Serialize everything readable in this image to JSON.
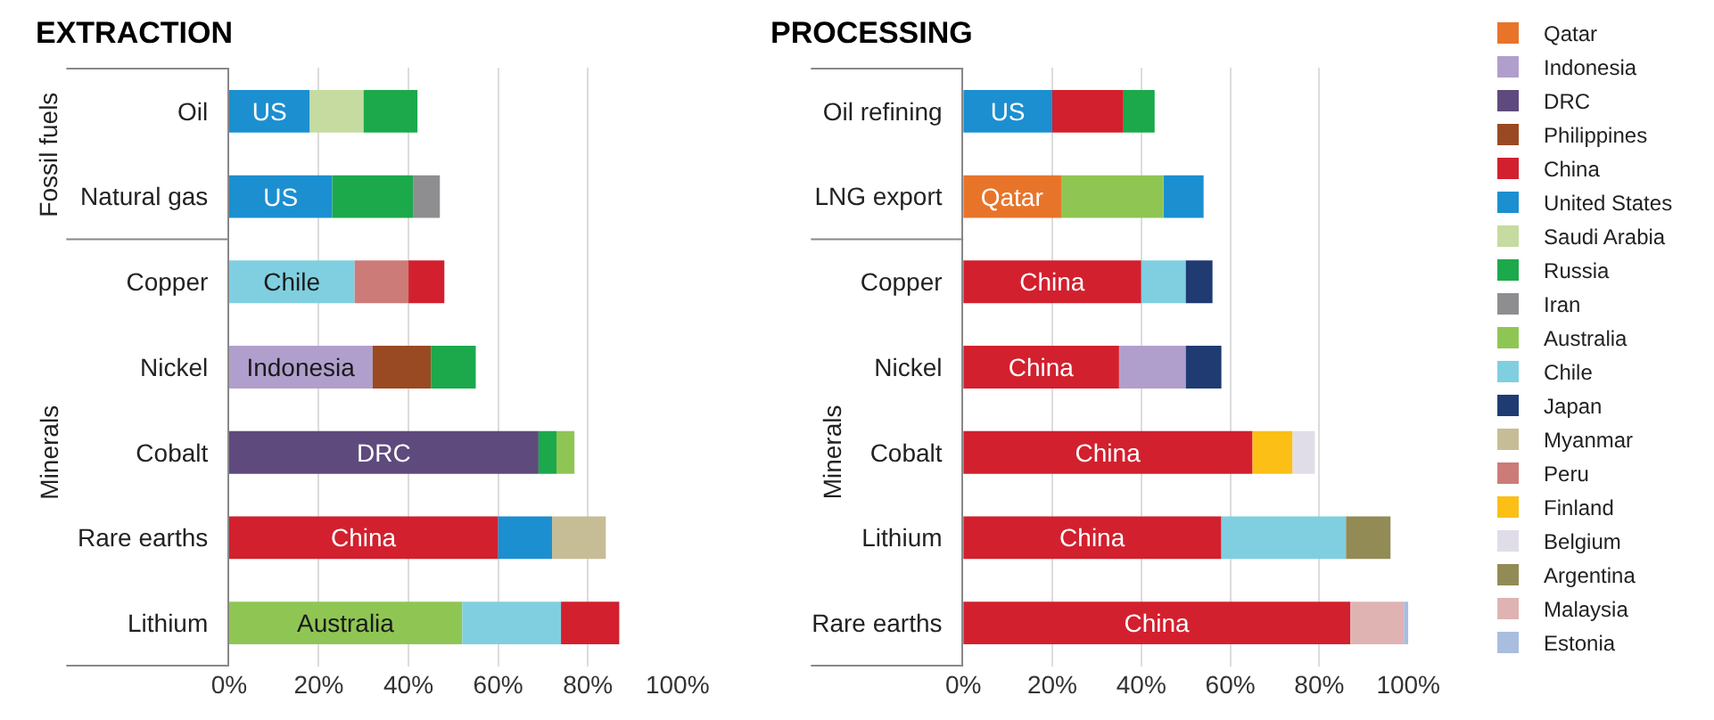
{
  "chart_data": [
    {
      "type": "bar",
      "title": "EXTRACTION",
      "orientation": "horizontal",
      "grid": "x",
      "categories": [
        "Oil",
        "Natural gas",
        "Copper",
        "Nickel",
        "Cobalt",
        "Rare earths",
        "Lithium"
      ],
      "xlim": [
        0,
        100
      ],
      "xticks": [
        {
          "value": 0,
          "label": "0%"
        },
        {
          "value": 20,
          "label": "20%"
        },
        {
          "value": 40,
          "label": "40%"
        },
        {
          "value": 60,
          "label": "60%"
        },
        {
          "value": 80,
          "label": "80%"
        },
        {
          "value": 100,
          "label": "100%"
        }
      ],
      "annotations": [
        "Fossil fuels",
        "Minerals"
      ],
      "series": [
        {
          "color": "#b09fcc",
          "values": [
            null,
            null,
            null,
            32,
            null,
            null,
            null
          ],
          "base": [
            null,
            null,
            null,
            0,
            null,
            null,
            null
          ],
          "value_labels": [
            null,
            null,
            null,
            "Indonesia",
            null,
            null,
            null
          ]
        },
        {
          "color": "#5e4a7d",
          "values": [
            null,
            null,
            null,
            null,
            69,
            null,
            null
          ],
          "base": [
            null,
            null,
            null,
            null,
            0,
            null,
            null
          ],
          "value_labels": [
            null,
            null,
            null,
            null,
            "DRC",
            null,
            null
          ]
        },
        {
          "color": "#9a4a22",
          "values": [
            null,
            null,
            null,
            13,
            null,
            null,
            null
          ],
          "base": [
            null,
            null,
            null,
            32,
            null,
            null,
            null
          ]
        },
        {
          "color": "#d2202e",
          "values": [
            null,
            null,
            8,
            null,
            null,
            60,
            13
          ],
          "base": [
            null,
            null,
            40,
            null,
            null,
            0,
            74
          ],
          "value_labels": [
            null,
            null,
            null,
            null,
            null,
            "China",
            null
          ]
        },
        {
          "color": "#1c8fd1",
          "values": [
            18,
            23,
            null,
            null,
            null,
            12,
            null
          ],
          "base": [
            0,
            0,
            null,
            null,
            null,
            60,
            null
          ],
          "value_labels": [
            "US",
            "US",
            null,
            null,
            null,
            null,
            null
          ]
        },
        {
          "color": "#c5dba0",
          "values": [
            12,
            null,
            null,
            null,
            null,
            null,
            null
          ],
          "base": [
            18,
            null,
            null,
            null,
            null,
            null,
            null
          ]
        },
        {
          "color": "#1ba94c",
          "values": [
            12,
            18,
            null,
            10,
            4,
            null,
            null
          ],
          "base": [
            30,
            23,
            null,
            45,
            69,
            null,
            null
          ]
        },
        {
          "color": "#8e8e90",
          "values": [
            null,
            6,
            null,
            null,
            null,
            null,
            null
          ],
          "base": [
            null,
            41,
            null,
            null,
            null,
            null,
            null
          ]
        },
        {
          "color": "#8fc653",
          "values": [
            null,
            null,
            null,
            null,
            4,
            null,
            52
          ],
          "base": [
            null,
            null,
            null,
            null,
            73,
            null,
            0
          ],
          "value_labels": [
            null,
            null,
            null,
            null,
            null,
            null,
            "Australia"
          ]
        },
        {
          "color": "#7fcfe0",
          "values": [
            null,
            null,
            28,
            null,
            null,
            null,
            22
          ],
          "base": [
            null,
            null,
            0,
            null,
            null,
            null,
            52
          ],
          "value_labels": [
            null,
            null,
            "Chile",
            null,
            null,
            null,
            null
          ]
        },
        {
          "color": "#c6bd96",
          "values": [
            null,
            null,
            null,
            null,
            null,
            12,
            null
          ],
          "base": [
            null,
            null,
            null,
            null,
            null,
            72,
            null
          ]
        },
        {
          "color": "#cc7b78",
          "values": [
            null,
            null,
            12,
            null,
            null,
            null,
            null
          ],
          "base": [
            null,
            null,
            28,
            null,
            null,
            null,
            null
          ]
        }
      ]
    },
    {
      "type": "bar",
      "title": "PROCESSING",
      "orientation": "horizontal",
      "grid": "x",
      "legend": "right",
      "categories": [
        "Oil refining",
        "LNG export",
        "Copper",
        "Nickel",
        "Cobalt",
        "Lithium",
        "Rare earths"
      ],
      "xlim": [
        0,
        100
      ],
      "xticks": [
        {
          "value": 0,
          "label": "0%"
        },
        {
          "value": 20,
          "label": "20%"
        },
        {
          "value": 40,
          "label": "40%"
        },
        {
          "value": 60,
          "label": "60%"
        },
        {
          "value": 80,
          "label": "80%"
        },
        {
          "value": 100,
          "label": "100%"
        }
      ],
      "annotations": [
        "Minerals"
      ],
      "series": [
        {
          "name": "Qatar",
          "color": "#e8742a",
          "values": [
            null,
            22,
            null,
            null,
            null,
            null,
            null
          ],
          "base": [
            null,
            0,
            null,
            null,
            null,
            null,
            null
          ],
          "value_labels": [
            null,
            "Qatar",
            null,
            null,
            null,
            null,
            null
          ]
        },
        {
          "name": "Indonesia",
          "color": "#b09fcc",
          "values": [
            null,
            null,
            null,
            15,
            null,
            null,
            null
          ],
          "base": [
            null,
            null,
            null,
            35,
            null,
            null,
            null
          ]
        },
        {
          "name": "DRC",
          "color": "#5e4a7d",
          "values": [
            null,
            null,
            null,
            null,
            null,
            null,
            null
          ],
          "base": [
            null,
            null,
            null,
            null,
            null,
            null,
            null
          ]
        },
        {
          "name": "Philippines",
          "color": "#9a4a22",
          "values": [
            null,
            null,
            null,
            null,
            null,
            null,
            null
          ],
          "base": [
            null,
            null,
            null,
            null,
            null,
            null,
            null
          ]
        },
        {
          "name": "China",
          "color": "#d2202e",
          "values": [
            16,
            null,
            40,
            35,
            65,
            58,
            87
          ],
          "base": [
            20,
            null,
            0,
            0,
            0,
            0,
            0
          ],
          "value_labels": [
            null,
            null,
            "China",
            "China",
            "China",
            "China",
            "China"
          ]
        },
        {
          "name": "United States",
          "color": "#1c8fd1",
          "values": [
            20,
            9,
            null,
            null,
            null,
            null,
            null
          ],
          "base": [
            0,
            45,
            null,
            null,
            null,
            null,
            null
          ],
          "value_labels": [
            "US",
            null,
            null,
            null,
            null,
            null,
            null
          ]
        },
        {
          "name": "Saudi Arabia",
          "color": "#c5dba0",
          "values": [
            null,
            null,
            null,
            null,
            null,
            null,
            null
          ],
          "base": [
            null,
            null,
            null,
            null,
            null,
            null,
            null
          ]
        },
        {
          "name": "Russia",
          "color": "#1ba94c",
          "values": [
            7,
            null,
            null,
            null,
            null,
            null,
            null
          ],
          "base": [
            36,
            null,
            null,
            null,
            null,
            null,
            null
          ]
        },
        {
          "name": "Iran",
          "color": "#8e8e90",
          "values": [
            null,
            null,
            null,
            null,
            null,
            null,
            null
          ],
          "base": [
            null,
            null,
            null,
            null,
            null,
            null,
            null
          ]
        },
        {
          "name": "Australia",
          "color": "#8fc653",
          "values": [
            null,
            23,
            null,
            null,
            null,
            null,
            null
          ],
          "base": [
            null,
            22,
            null,
            null,
            null,
            null,
            null
          ]
        },
        {
          "name": "Chile",
          "color": "#7fcfe0",
          "values": [
            null,
            null,
            10,
            null,
            null,
            28,
            null
          ],
          "base": [
            null,
            null,
            40,
            null,
            null,
            58,
            null
          ]
        },
        {
          "name": "Japan",
          "color": "#1f3b72",
          "values": [
            null,
            null,
            6,
            8,
            null,
            null,
            null
          ],
          "base": [
            null,
            null,
            50,
            50,
            null,
            null,
            null
          ]
        },
        {
          "name": "Myanmar",
          "color": "#c6bd96",
          "values": [
            null,
            null,
            null,
            null,
            null,
            null,
            null
          ],
          "base": [
            null,
            null,
            null,
            null,
            null,
            null,
            null
          ]
        },
        {
          "name": "Peru",
          "color": "#cc7b78",
          "values": [
            null,
            null,
            null,
            null,
            null,
            null,
            null
          ],
          "base": [
            null,
            null,
            null,
            null,
            null,
            null,
            null
          ]
        },
        {
          "name": "Finland",
          "color": "#fbbf16",
          "values": [
            null,
            null,
            null,
            null,
            9,
            null,
            null
          ],
          "base": [
            null,
            null,
            null,
            null,
            65,
            null,
            null
          ]
        },
        {
          "name": "Belgium",
          "color": "#e0dde8",
          "values": [
            null,
            null,
            null,
            null,
            5,
            null,
            null
          ],
          "base": [
            null,
            null,
            null,
            null,
            74,
            null,
            null
          ]
        },
        {
          "name": "Argentina",
          "color": "#938b55",
          "values": [
            null,
            null,
            null,
            null,
            null,
            10,
            null
          ],
          "base": [
            null,
            null,
            null,
            null,
            null,
            86,
            null
          ]
        },
        {
          "name": "Malaysia",
          "color": "#e0b3b3",
          "values": [
            null,
            null,
            null,
            null,
            null,
            null,
            12
          ],
          "base": [
            null,
            null,
            null,
            null,
            null,
            null,
            87
          ]
        },
        {
          "name": "Estonia",
          "color": "#a9bddf",
          "values": [
            null,
            null,
            null,
            null,
            null,
            null,
            1
          ],
          "base": [
            null,
            null,
            null,
            null,
            null,
            null,
            99
          ]
        }
      ]
    }
  ]
}
